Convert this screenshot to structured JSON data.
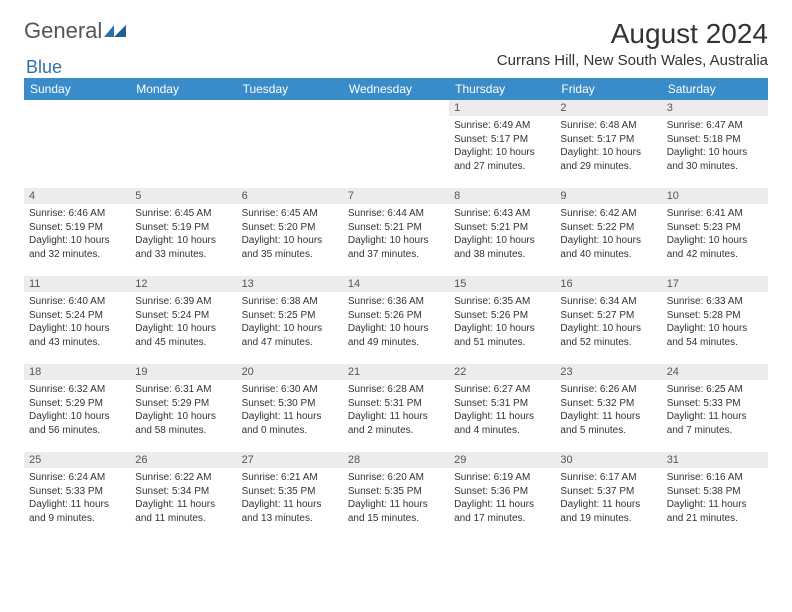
{
  "logo": {
    "text1": "General",
    "text2": "Blue"
  },
  "header": {
    "month_title": "August 2024",
    "location": "Currans Hill, New South Wales, Australia"
  },
  "style": {
    "header_bg": "#3a8bc9",
    "header_fg": "#ffffff",
    "daynum_bg": "#ececec",
    "body_bg": "#ffffff"
  },
  "days_of_week": [
    "Sunday",
    "Monday",
    "Tuesday",
    "Wednesday",
    "Thursday",
    "Friday",
    "Saturday"
  ],
  "cells": [
    {
      "blank": true
    },
    {
      "blank": true
    },
    {
      "blank": true
    },
    {
      "blank": true
    },
    {
      "n": "1",
      "sr": "6:49 AM",
      "ss": "5:17 PM",
      "dl": "10 hours and 27 minutes."
    },
    {
      "n": "2",
      "sr": "6:48 AM",
      "ss": "5:17 PM",
      "dl": "10 hours and 29 minutes."
    },
    {
      "n": "3",
      "sr": "6:47 AM",
      "ss": "5:18 PM",
      "dl": "10 hours and 30 minutes."
    },
    {
      "n": "4",
      "sr": "6:46 AM",
      "ss": "5:19 PM",
      "dl": "10 hours and 32 minutes."
    },
    {
      "n": "5",
      "sr": "6:45 AM",
      "ss": "5:19 PM",
      "dl": "10 hours and 33 minutes."
    },
    {
      "n": "6",
      "sr": "6:45 AM",
      "ss": "5:20 PM",
      "dl": "10 hours and 35 minutes."
    },
    {
      "n": "7",
      "sr": "6:44 AM",
      "ss": "5:21 PM",
      "dl": "10 hours and 37 minutes."
    },
    {
      "n": "8",
      "sr": "6:43 AM",
      "ss": "5:21 PM",
      "dl": "10 hours and 38 minutes."
    },
    {
      "n": "9",
      "sr": "6:42 AM",
      "ss": "5:22 PM",
      "dl": "10 hours and 40 minutes."
    },
    {
      "n": "10",
      "sr": "6:41 AM",
      "ss": "5:23 PM",
      "dl": "10 hours and 42 minutes."
    },
    {
      "n": "11",
      "sr": "6:40 AM",
      "ss": "5:24 PM",
      "dl": "10 hours and 43 minutes."
    },
    {
      "n": "12",
      "sr": "6:39 AM",
      "ss": "5:24 PM",
      "dl": "10 hours and 45 minutes."
    },
    {
      "n": "13",
      "sr": "6:38 AM",
      "ss": "5:25 PM",
      "dl": "10 hours and 47 minutes."
    },
    {
      "n": "14",
      "sr": "6:36 AM",
      "ss": "5:26 PM",
      "dl": "10 hours and 49 minutes."
    },
    {
      "n": "15",
      "sr": "6:35 AM",
      "ss": "5:26 PM",
      "dl": "10 hours and 51 minutes."
    },
    {
      "n": "16",
      "sr": "6:34 AM",
      "ss": "5:27 PM",
      "dl": "10 hours and 52 minutes."
    },
    {
      "n": "17",
      "sr": "6:33 AM",
      "ss": "5:28 PM",
      "dl": "10 hours and 54 minutes."
    },
    {
      "n": "18",
      "sr": "6:32 AM",
      "ss": "5:29 PM",
      "dl": "10 hours and 56 minutes."
    },
    {
      "n": "19",
      "sr": "6:31 AM",
      "ss": "5:29 PM",
      "dl": "10 hours and 58 minutes."
    },
    {
      "n": "20",
      "sr": "6:30 AM",
      "ss": "5:30 PM",
      "dl": "11 hours and 0 minutes."
    },
    {
      "n": "21",
      "sr": "6:28 AM",
      "ss": "5:31 PM",
      "dl": "11 hours and 2 minutes."
    },
    {
      "n": "22",
      "sr": "6:27 AM",
      "ss": "5:31 PM",
      "dl": "11 hours and 4 minutes."
    },
    {
      "n": "23",
      "sr": "6:26 AM",
      "ss": "5:32 PM",
      "dl": "11 hours and 5 minutes."
    },
    {
      "n": "24",
      "sr": "6:25 AM",
      "ss": "5:33 PM",
      "dl": "11 hours and 7 minutes."
    },
    {
      "n": "25",
      "sr": "6:24 AM",
      "ss": "5:33 PM",
      "dl": "11 hours and 9 minutes."
    },
    {
      "n": "26",
      "sr": "6:22 AM",
      "ss": "5:34 PM",
      "dl": "11 hours and 11 minutes."
    },
    {
      "n": "27",
      "sr": "6:21 AM",
      "ss": "5:35 PM",
      "dl": "11 hours and 13 minutes."
    },
    {
      "n": "28",
      "sr": "6:20 AM",
      "ss": "5:35 PM",
      "dl": "11 hours and 15 minutes."
    },
    {
      "n": "29",
      "sr": "6:19 AM",
      "ss": "5:36 PM",
      "dl": "11 hours and 17 minutes."
    },
    {
      "n": "30",
      "sr": "6:17 AM",
      "ss": "5:37 PM",
      "dl": "11 hours and 19 minutes."
    },
    {
      "n": "31",
      "sr": "6:16 AM",
      "ss": "5:38 PM",
      "dl": "11 hours and 21 minutes."
    }
  ],
  "labels": {
    "sunrise": "Sunrise:",
    "sunset": "Sunset:",
    "daylight": "Daylight:"
  }
}
